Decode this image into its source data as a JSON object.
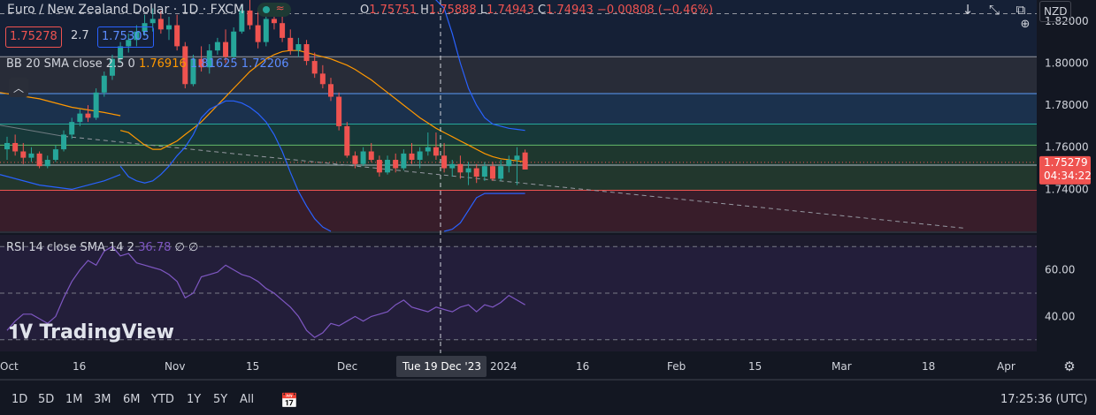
{
  "header": {
    "symbol_title": "Euro / New Zealand Dollar · 1D · FXCM",
    "ohlc": {
      "o_label": "O",
      "o": "1.75751",
      "h_label": "H",
      "h": "1.75888",
      "l_label": "L",
      "l": "1.74943",
      "c_label": "C",
      "c": "1.74943",
      "change": "−0.00808 (−0.46%)"
    },
    "sell_price": "1.75278",
    "spread": "2.7",
    "buy_price": "1.75305",
    "currency_button": "NZD"
  },
  "bb_legend": {
    "label": "BB 20 SMA close 2.5 0",
    "basis": "1.76916",
    "upper": "1.81625",
    "lower": "1.72206"
  },
  "rsi_legend": {
    "label": "RSI 14 close SMA 14 2",
    "value": "36.78",
    "v2": "∅",
    "v3": "∅"
  },
  "price_axis": {
    "ticks": [
      "1.82000",
      "1.80000",
      "1.78000",
      "1.76000",
      "1.74000"
    ],
    "current_price": "1.75279",
    "countdown": "04:34:22"
  },
  "rsi_axis": {
    "ticks": [
      "60.00",
      "40.00"
    ]
  },
  "time_axis": {
    "labels": [
      "Oct",
      "16",
      "Nov",
      "15",
      "Dec",
      "2024",
      "16",
      "Feb",
      "15",
      "Mar",
      "18",
      "Apr"
    ],
    "crosshair_label": "Tue 19 Dec '23"
  },
  "toolbar": {
    "ranges": [
      "1D",
      "5D",
      "1M",
      "3M",
      "6M",
      "YTD",
      "1Y",
      "5Y",
      "All"
    ],
    "clock": "17:25:36 (UTC)"
  },
  "watermark": "TradingView",
  "colors": {
    "up": "#26a69a",
    "down": "#ef5350",
    "bb_basis": "#ff9800",
    "bb_band": "#2962ff",
    "rsi": "#7e57c2"
  },
  "chart_data": {
    "type": "candlestick",
    "price_scale": {
      "ylim": [
        1.72,
        1.83
      ],
      "ticks": [
        1.82,
        1.8,
        1.78,
        1.76,
        1.74
      ]
    },
    "candles": [
      [
        1.759,
        1.765,
        1.754,
        1.762
      ],
      [
        1.762,
        1.766,
        1.756,
        1.758
      ],
      [
        1.758,
        1.762,
        1.752,
        1.755
      ],
      [
        1.755,
        1.76,
        1.753,
        1.757
      ],
      [
        1.757,
        1.758,
        1.75,
        1.751
      ],
      [
        1.751,
        1.756,
        1.75,
        1.754
      ],
      [
        1.754,
        1.761,
        1.753,
        1.759
      ],
      [
        1.759,
        1.768,
        1.758,
        1.766
      ],
      [
        1.766,
        1.774,
        1.764,
        1.772
      ],
      [
        1.772,
        1.778,
        1.77,
        1.776
      ],
      [
        1.776,
        1.78,
        1.772,
        1.774
      ],
      [
        1.774,
        1.788,
        1.773,
        1.786
      ],
      [
        1.786,
        1.796,
        1.784,
        1.794
      ],
      [
        1.794,
        1.804,
        1.792,
        1.802
      ],
      [
        1.802,
        1.81,
        1.8,
        1.808
      ],
      [
        1.808,
        1.814,
        1.805,
        1.811
      ],
      [
        1.811,
        1.818,
        1.808,
        1.815
      ],
      [
        1.815,
        1.823,
        1.813,
        1.819
      ],
      [
        1.819,
        1.826,
        1.815,
        1.821
      ],
      [
        1.821,
        1.825,
        1.814,
        1.816
      ],
      [
        1.816,
        1.822,
        1.811,
        1.818
      ],
      [
        1.818,
        1.823,
        1.806,
        1.808
      ],
      [
        1.808,
        1.81,
        1.788,
        1.79
      ],
      [
        1.79,
        1.804,
        1.789,
        1.802
      ],
      [
        1.802,
        1.808,
        1.796,
        1.798
      ],
      [
        1.798,
        1.809,
        1.795,
        1.806
      ],
      [
        1.806,
        1.812,
        1.804,
        1.81
      ],
      [
        1.81,
        1.816,
        1.8,
        1.803
      ],
      [
        1.803,
        1.817,
        1.802,
        1.815
      ],
      [
        1.815,
        1.828,
        1.814,
        1.825
      ],
      [
        1.825,
        1.83,
        1.816,
        1.818
      ],
      [
        1.818,
        1.826,
        1.807,
        1.81
      ],
      [
        1.81,
        1.823,
        1.808,
        1.821
      ],
      [
        1.821,
        1.824,
        1.816,
        1.819
      ],
      [
        1.819,
        1.826,
        1.81,
        1.812
      ],
      [
        1.812,
        1.816,
        1.804,
        1.806
      ],
      [
        1.806,
        1.812,
        1.803,
        1.809
      ],
      [
        1.809,
        1.811,
        1.799,
        1.801
      ],
      [
        1.801,
        1.805,
        1.793,
        1.795
      ],
      [
        1.795,
        1.799,
        1.788,
        1.79
      ],
      [
        1.79,
        1.793,
        1.782,
        1.784
      ],
      [
        1.784,
        1.786,
        1.768,
        1.77
      ],
      [
        1.77,
        1.772,
        1.755,
        1.756
      ],
      [
        1.756,
        1.758,
        1.75,
        1.752
      ],
      [
        1.752,
        1.76,
        1.751,
        1.758
      ],
      [
        1.758,
        1.762,
        1.753,
        1.754
      ],
      [
        1.754,
        1.756,
        1.746,
        1.748
      ],
      [
        1.748,
        1.756,
        1.747,
        1.754
      ],
      [
        1.754,
        1.757,
        1.748,
        1.75
      ],
      [
        1.75,
        1.759,
        1.749,
        1.757
      ],
      [
        1.757,
        1.762,
        1.752,
        1.754
      ],
      [
        1.754,
        1.76,
        1.75,
        1.758
      ],
      [
        1.758,
        1.767,
        1.756,
        1.76
      ],
      [
        1.76,
        1.767,
        1.754,
        1.756
      ],
      [
        1.756,
        1.762,
        1.748,
        1.75
      ],
      [
        1.75,
        1.754,
        1.746,
        1.752
      ],
      [
        1.752,
        1.756,
        1.745,
        1.748
      ],
      [
        1.748,
        1.753,
        1.742,
        1.75
      ],
      [
        1.75,
        1.752,
        1.743,
        1.746
      ],
      [
        1.746,
        1.753,
        1.744,
        1.751
      ],
      [
        1.751,
        1.753,
        1.744,
        1.745
      ],
      [
        1.745,
        1.754,
        1.744,
        1.751
      ],
      [
        1.751,
        1.756,
        1.748,
        1.754
      ],
      [
        1.754,
        1.76,
        1.742,
        1.756
      ],
      [
        1.7575,
        1.7589,
        1.7494,
        1.7494
      ]
    ],
    "bb_basis": [
      1.768,
      1.767,
      1.764,
      1.761,
      1.759,
      1.759,
      1.761,
      1.763,
      1.766,
      1.769,
      1.772,
      1.776,
      1.78,
      1.784,
      1.788,
      1.792,
      1.796,
      1.799,
      1.802,
      1.804,
      1.8055,
      1.806,
      1.806,
      1.805,
      1.804,
      1.803,
      1.802,
      1.8005,
      1.799,
      1.797,
      1.7945,
      1.792,
      1.789,
      1.786,
      1.783,
      1.78,
      1.777,
      1.774,
      1.7715,
      1.769,
      1.767,
      1.765,
      1.763,
      1.761,
      1.759,
      1.757,
      1.7555,
      1.7545,
      1.754,
      1.7535,
      1.753
    ],
    "bb_basis_start": 14,
    "bb_upper": [
      1.83,
      1.826,
      1.814,
      1.8,
      1.788,
      1.78,
      1.774,
      1.771,
      1.77,
      1.769,
      1.7685,
      1.768
    ],
    "bb_upper_start": 53,
    "bb_lower": [
      1.751,
      1.746,
      1.744,
      1.743,
      1.744,
      1.747,
      1.751,
      1.756,
      1.76,
      1.766,
      1.774,
      1.778,
      1.78,
      1.782,
      1.782,
      1.781,
      1.779,
      1.776,
      1.772,
      1.766,
      1.758,
      1.748,
      1.739,
      1.732,
      1.726,
      1.722,
      1.72
    ],
    "bb_lower_start": 14,
    "bb_lower2": [
      1.72,
      1.721,
      1.724,
      1.73,
      1.736,
      1.738,
      1.738,
      1.738,
      1.738,
      1.738,
      1.738
    ],
    "bb_lower2_start": 54,
    "rsi_scale": {
      "ylim": [
        25,
        75
      ],
      "ticks": [
        60,
        40
      ],
      "bands": [
        70,
        50,
        30
      ]
    },
    "rsi": [
      34,
      38,
      41,
      41,
      39,
      37,
      40,
      48,
      55,
      60,
      64,
      62,
      68,
      70,
      66,
      67,
      63,
      62,
      61,
      60,
      58,
      55,
      48,
      50,
      57,
      58,
      59,
      62,
      60,
      58,
      57,
      55,
      52,
      50,
      47,
      44,
      40,
      34,
      31,
      33,
      37,
      36,
      38,
      40,
      38,
      40,
      41,
      42,
      45,
      47,
      44,
      43,
      42,
      44,
      43,
      42,
      44,
      45,
      42,
      45,
      44,
      46,
      49,
      47,
      45
    ]
  }
}
